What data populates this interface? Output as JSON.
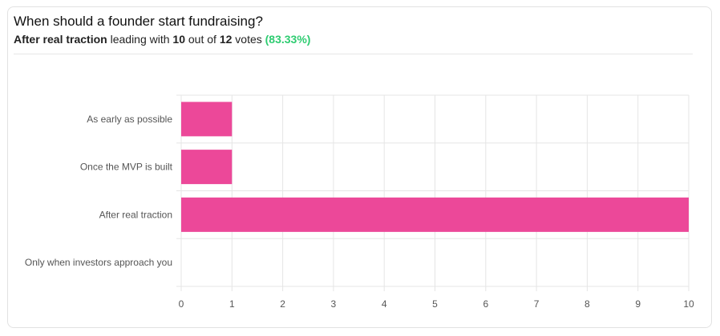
{
  "header": {
    "question": "When should a founder start fundraising?",
    "leader": "After real traction",
    "leading_with": "leading with",
    "leader_votes": "10",
    "out_of": "out of",
    "total_votes": "12",
    "votes_word": "votes",
    "leader_pct": "(83.33%)"
  },
  "colors": {
    "bar": "#ec4899",
    "grid": "#e5e5e5",
    "percent": "#2ecc71"
  },
  "chart_data": {
    "type": "bar",
    "orientation": "horizontal",
    "categories": [
      "As early as possible",
      "Once the MVP is built",
      "After real traction",
      "Only when investors approach you"
    ],
    "values": [
      1,
      1,
      10,
      0
    ],
    "xlim": [
      0,
      10
    ],
    "xticks": [
      "0",
      "1",
      "2",
      "3",
      "4",
      "5",
      "6",
      "7",
      "8",
      "9",
      "10"
    ],
    "grid": true,
    "legend": "none"
  }
}
